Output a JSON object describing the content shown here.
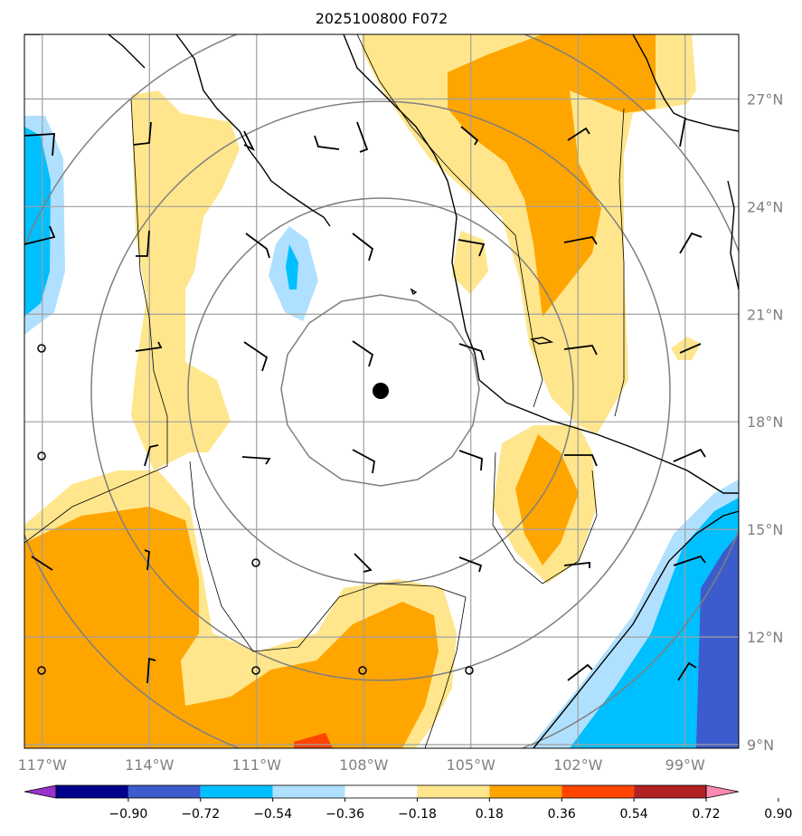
{
  "chart_data": {
    "type": "heatmap",
    "title": "2025100800 F072",
    "projection": "polar-stereographic-like with range rings",
    "lon_range": [
      -117.5,
      -97.5
    ],
    "lat_range": [
      8.9,
      28.8
    ],
    "lon_ticks": [
      -117,
      -114,
      -111,
      -108,
      -105,
      -102,
      -99
    ],
    "lon_tick_labels": [
      "117°W",
      "114°W",
      "111°W",
      "108°W",
      "105°W",
      "102°W",
      "99°W"
    ],
    "lat_ticks": [
      9,
      12,
      15,
      18,
      21,
      24,
      27
    ],
    "lat_tick_labels": [
      "9°N",
      "12°N",
      "15°N",
      "18°N",
      "21°N",
      "24°N",
      "27°N"
    ],
    "grid": true,
    "center": {
      "lon": -108.5,
      "lat": 18.8,
      "marker": "filled circle"
    },
    "range_rings": 4,
    "colorbar": {
      "orientation": "horizontal",
      "extend": "both",
      "tick_labels": [
        "−0.90",
        "−0.72",
        "−0.54",
        "−0.36",
        "−0.18",
        "0.18",
        "0.36",
        "0.54",
        "0.72",
        "0.90"
      ],
      "colors": [
        "#9932cc",
        "#00008b",
        "#3c5bcc",
        "#00bfff",
        "#b0e0ff",
        "#ffffff",
        "#ffe68c",
        "#ffa500",
        "#ff4500",
        "#b22222",
        "#ff88b2"
      ]
    }
  }
}
